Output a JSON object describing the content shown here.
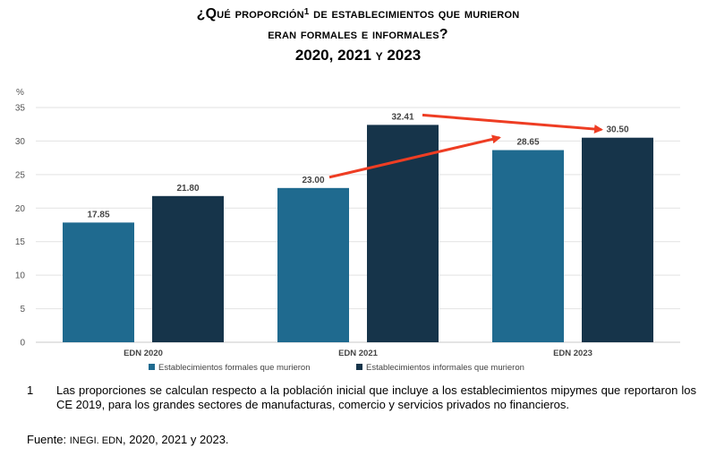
{
  "title": {
    "line1_pre": "¿Qué proporción",
    "line1_sup": "1",
    "line1_post": " de establecimientos que murieron",
    "line2": "eran formales e informales?",
    "line3": "2020, 2021 y 2023"
  },
  "chart_data": {
    "type": "bar",
    "ylabel": "%",
    "ylim": [
      0,
      35
    ],
    "yticks": [
      0,
      5,
      10,
      15,
      20,
      25,
      30,
      35
    ],
    "categories": [
      "EDN 2020",
      "EDN 2021",
      "EDN 2023"
    ],
    "series": [
      {
        "name": "Establecimientos formales que murieron",
        "color": "#1f6a8f",
        "values": [
          17.85,
          23.0,
          28.65
        ],
        "labels": [
          "17.85",
          "23.00",
          "28.65"
        ]
      },
      {
        "name": "Establecimientos informales que murieron",
        "color": "#16344a",
        "values": [
          21.8,
          32.41,
          30.5
        ],
        "labels": [
          "21.80",
          "32.41",
          "30.50"
        ]
      }
    ],
    "annotations": [
      {
        "type": "arrow",
        "from": "EDN 2021 formales 23.00",
        "to": "EDN 2023 formales 28.65",
        "color": "#ee3d23"
      },
      {
        "type": "arrow",
        "from": "EDN 2021 informales 32.41",
        "to": "EDN 2023 informales 30.50",
        "color": "#ee3d23"
      }
    ],
    "legend": "bottom"
  },
  "footnote": {
    "number": "1",
    "text": "Las proporciones se calculan respecto a la población inicial que incluye a los establecimientos mipymes que reportaron los CE 2019, para los grandes sectores de manufacturas, comercio y servicios privados no financieros."
  },
  "source": {
    "label": "Fuente: ",
    "org": "INEGI. EDN",
    "rest": ", 2020, 2021 y 2023."
  }
}
